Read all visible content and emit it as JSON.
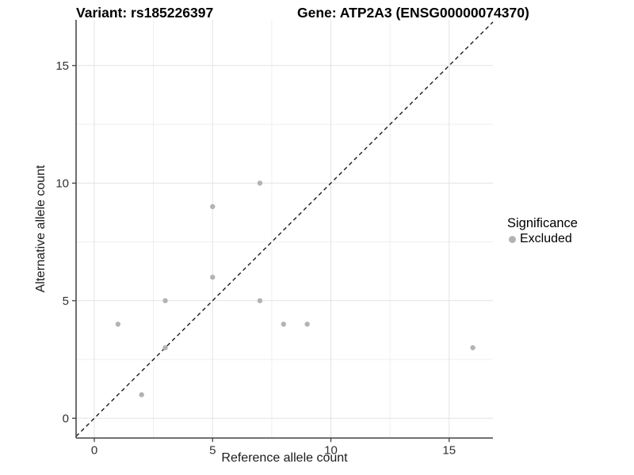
{
  "figure": {
    "title_variant": "Variant: rs185226397",
    "title_gene": "Gene: ATP2A3 (ENSG00000074370)"
  },
  "chart_data": {
    "type": "scatter",
    "title": "Variant: rs185226397 — Gene: ATP2A3 (ENSG00000074370)",
    "xlabel": "Reference allele count",
    "ylabel": "Alternative allele count",
    "x_ticks": [
      0,
      5,
      10,
      15
    ],
    "y_ticks": [
      0,
      5,
      10,
      15
    ],
    "x_minor": [
      2.5,
      7.5,
      12.5
    ],
    "y_minor": [
      2.5,
      7.5,
      12.5
    ],
    "xlim": [
      -0.77,
      16.85
    ],
    "ylim": [
      -0.84,
      16.95
    ],
    "grid": true,
    "identity_line": "y = x, dashed",
    "series": [
      {
        "name": "Excluded",
        "points": [
          {
            "x": 1,
            "y": 4
          },
          {
            "x": 2,
            "y": 1
          },
          {
            "x": 3,
            "y": 3
          },
          {
            "x": 3,
            "y": 5
          },
          {
            "x": 5,
            "y": 6
          },
          {
            "x": 5,
            "y": 9
          },
          {
            "x": 7,
            "y": 5
          },
          {
            "x": 7,
            "y": 10
          },
          {
            "x": 8,
            "y": 4
          },
          {
            "x": 9,
            "y": 4
          },
          {
            "x": 16,
            "y": 3
          }
        ]
      }
    ],
    "legend": {
      "title": "Significance",
      "position": "right",
      "items": [
        {
          "label": "Excluded",
          "color": "#b3b3b3"
        }
      ]
    },
    "colors": {
      "point": "#b3b3b3",
      "grid_major": "#e3e3e3",
      "grid_minor": "#efefef",
      "axis_line": "#4a4a4a",
      "tick_mark": "#333333",
      "tick_label": "#303030",
      "identity_line": "#1a1a1a",
      "background": "#ffffff"
    }
  }
}
